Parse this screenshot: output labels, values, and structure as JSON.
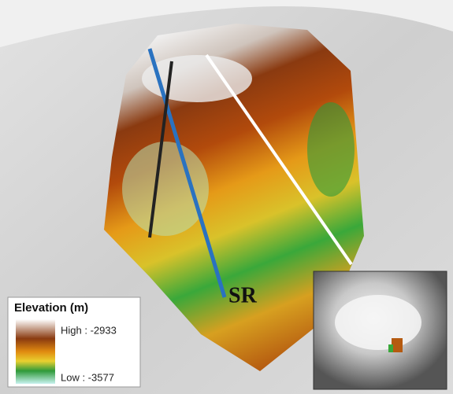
{
  "legend": {
    "title": "Elevation (m)",
    "high": "High : -2933",
    "low": "Low : -3577"
  },
  "map": {
    "site_label": "SR"
  }
}
